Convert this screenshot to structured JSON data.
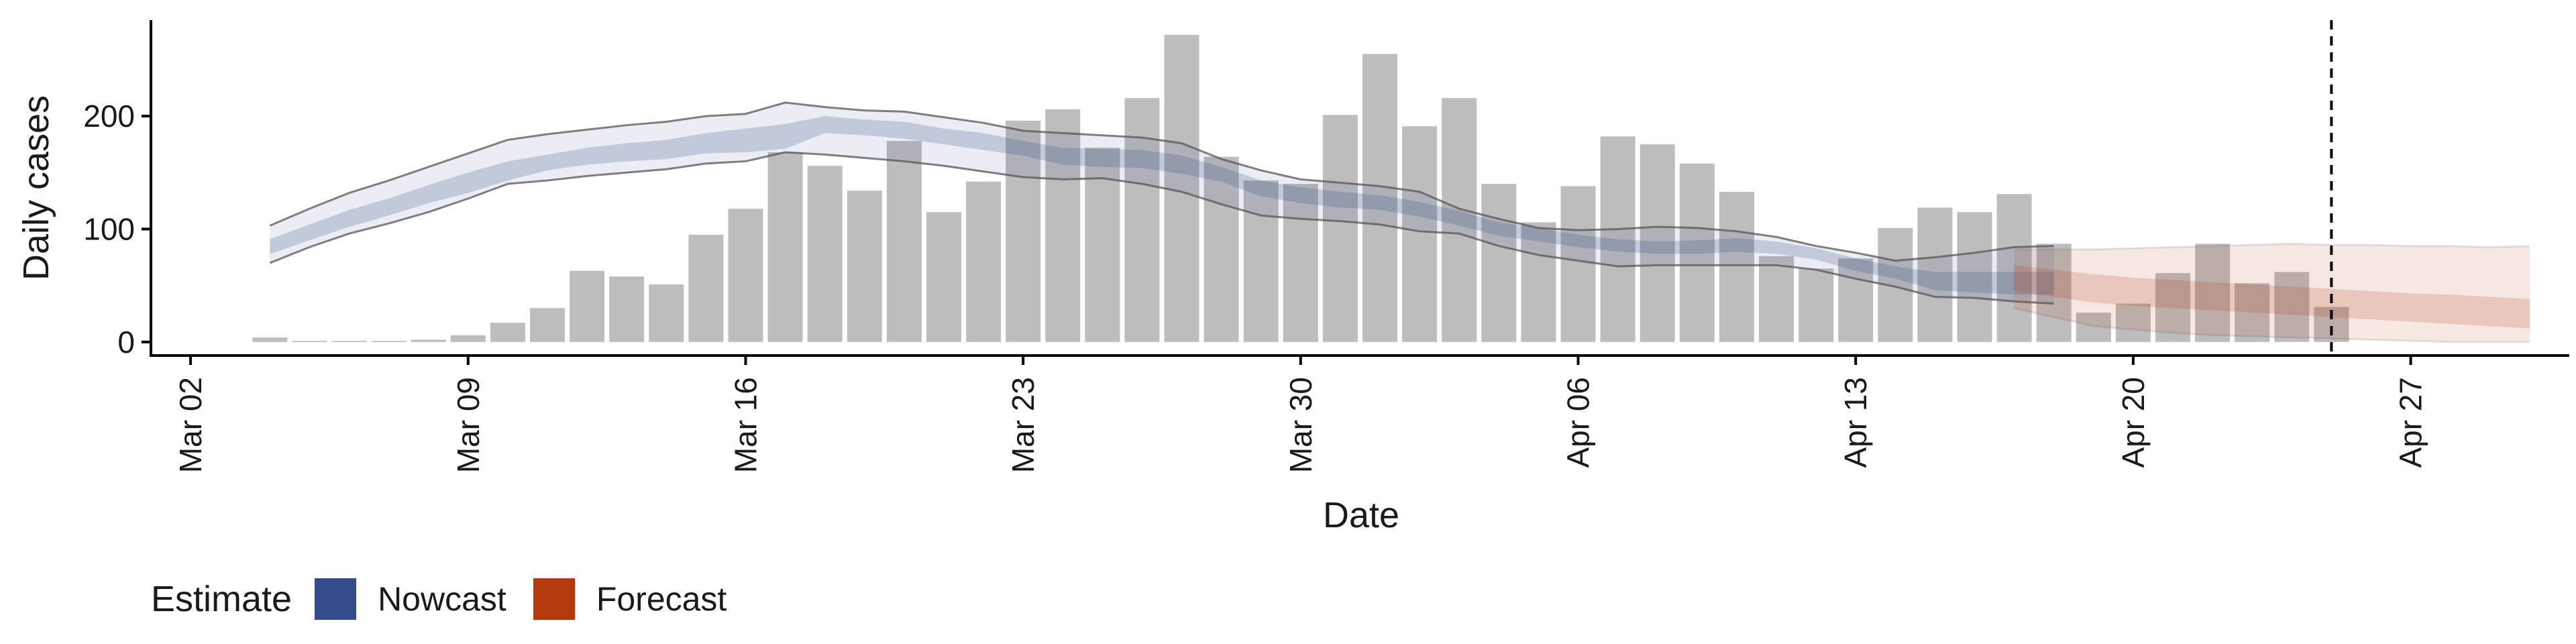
{
  "chart_data": {
    "type": "bar",
    "xlabel": "Date",
    "ylabel": "Daily cases",
    "y_ticks": [
      "0",
      "100",
      "200"
    ],
    "x_ticks": [
      "Mar 02",
      "Mar 09",
      "Mar 16",
      "Mar 23",
      "Mar 30",
      "Apr 06",
      "Apr 13",
      "Apr 20",
      "Apr 27"
    ],
    "xlim": [
      "2020-03-01",
      "2020-05-01"
    ],
    "ylim": [
      -12,
      285
    ],
    "reference_line_date": "2020-04-25",
    "bars": {
      "start_date": "2020-03-04",
      "values": [
        4,
        1,
        1,
        1,
        2,
        6,
        17,
        30,
        63,
        58,
        51,
        95,
        118,
        168,
        156,
        134,
        178,
        115,
        142,
        196,
        206,
        172,
        216,
        272,
        164,
        143,
        140,
        201,
        255,
        191,
        216,
        140,
        106,
        138,
        182,
        175,
        158,
        133,
        76,
        65,
        74,
        101,
        119,
        115,
        131,
        87,
        26,
        34,
        61,
        87,
        52,
        62,
        31
      ]
    },
    "series": [
      {
        "name": "Nowcast",
        "color": "#354a8a",
        "start_date": "2020-03-04",
        "median": [
          85,
          97,
          110,
          120,
          131,
          141,
          152,
          160,
          165,
          168,
          170,
          176,
          178,
          180,
          193,
          190,
          188,
          182,
          178,
          172,
          165,
          163,
          162,
          157,
          149,
          136,
          130,
          126,
          124,
          118,
          110,
          101,
          96,
          90,
          86,
          84,
          84,
          86,
          84,
          79,
          69,
          62,
          54,
          53,
          52,
          52
        ],
        "upper90": [
          103,
          118,
          132,
          143,
          155,
          167,
          179,
          184,
          188,
          192,
          195,
          200,
          202,
          212,
          208,
          205,
          204,
          199,
          194,
          187,
          185,
          183,
          181,
          176,
          162,
          152,
          144,
          141,
          138,
          133,
          118,
          109,
          101,
          99,
          100,
          102,
          101,
          98,
          93,
          85,
          79,
          72,
          75,
          79,
          84,
          85
        ],
        "lower90": [
          70,
          84,
          96,
          105,
          115,
          127,
          140,
          143,
          147,
          150,
          153,
          158,
          160,
          168,
          166,
          163,
          160,
          156,
          151,
          146,
          144,
          145,
          140,
          133,
          122,
          112,
          109,
          107,
          104,
          98,
          96,
          85,
          77,
          72,
          67,
          68,
          68,
          68,
          68,
          64,
          56,
          49,
          40,
          39,
          36,
          34
        ],
        "upper50": [
          91,
          104,
          117,
          127,
          139,
          150,
          160,
          166,
          172,
          176,
          179,
          185,
          189,
          193,
          200,
          197,
          195,
          189,
          185,
          178,
          172,
          171,
          170,
          165,
          155,
          143,
          137,
          133,
          130,
          124,
          116,
          106,
          101,
          95,
          91,
          89,
          90,
          92,
          89,
          83,
          74,
          67,
          62,
          62,
          62,
          62
        ],
        "lower50": [
          78,
          90,
          102,
          112,
          123,
          132,
          143,
          152,
          157,
          160,
          162,
          167,
          168,
          171,
          185,
          183,
          180,
          175,
          170,
          165,
          157,
          155,
          154,
          149,
          142,
          129,
          123,
          119,
          117,
          111,
          103,
          94,
          89,
          84,
          80,
          78,
          78,
          80,
          78,
          73,
          63,
          56,
          46,
          44,
          42,
          42
        ]
      },
      {
        "name": "Forecast",
        "color": "#b23a0e",
        "start_date": "2020-04-17",
        "median": [
          57,
          52,
          48,
          45,
          44,
          43,
          41,
          39,
          37,
          35,
          33,
          31,
          29,
          27
        ],
        "upper90": [
          82,
          82,
          82,
          83,
          84,
          85,
          86,
          87,
          86,
          86,
          85,
          85,
          84,
          85
        ],
        "lower90": [
          30,
          22,
          14,
          11,
          8,
          6,
          5,
          4,
          3,
          2,
          1,
          0,
          0,
          0
        ],
        "upper50": [
          68,
          64,
          60,
          57,
          55,
          53,
          51,
          49,
          47,
          45,
          43,
          42,
          40,
          38
        ],
        "lower50": [
          45,
          40,
          35,
          32,
          30,
          28,
          26,
          24,
          22,
          20,
          18,
          16,
          14,
          12
        ]
      }
    ]
  },
  "legend": {
    "title": "Estimate",
    "items": [
      {
        "label": "Nowcast",
        "color": "#354a8a"
      },
      {
        "label": "Forecast",
        "color": "#b23a0e"
      }
    ]
  }
}
